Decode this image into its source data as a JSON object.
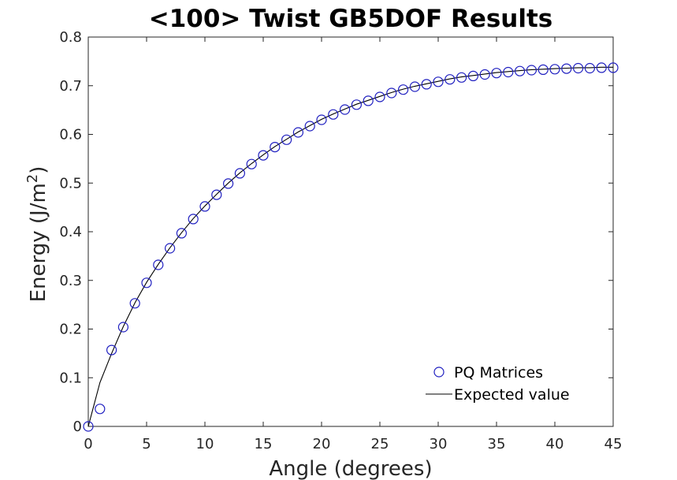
{
  "chart_data": {
    "type": "scatter",
    "title": "<100> Twist GB5DOF Results",
    "xlabel": "Angle (degrees)",
    "ylabel": "Energy (J/m",
    "ylabel_sup": "2",
    "ylabel_close": ")",
    "xlim": [
      0,
      45
    ],
    "ylim": [
      0,
      0.8
    ],
    "xticks": [
      0,
      5,
      10,
      15,
      20,
      25,
      30,
      35,
      40,
      45
    ],
    "yticks": [
      0,
      0.1,
      0.2,
      0.3,
      0.4,
      0.5,
      0.6,
      0.7,
      0.8
    ],
    "ytick_labels": [
      "0",
      "0.1",
      "0.2",
      "0.3",
      "0.4",
      "0.5",
      "0.6",
      "0.7",
      "0.8"
    ],
    "grid": false,
    "legend_position": "bottom-right",
    "series": [
      {
        "name": "PQ Matrices",
        "style": "markers",
        "marker": "circle",
        "color": "#1f1fc0",
        "x": [
          0,
          1,
          2,
          3,
          4,
          5,
          6,
          7,
          8,
          9,
          10,
          11,
          12,
          13,
          14,
          15,
          16,
          17,
          18,
          19,
          20,
          21,
          22,
          23,
          24,
          25,
          26,
          27,
          28,
          29,
          30,
          31,
          32,
          33,
          34,
          35,
          36,
          37,
          38,
          39,
          40,
          41,
          42,
          43,
          44,
          45
        ],
        "y": [
          0,
          0.036,
          0.157,
          0.204,
          0.253,
          0.295,
          0.332,
          0.366,
          0.397,
          0.426,
          0.452,
          0.476,
          0.499,
          0.52,
          0.539,
          0.557,
          0.574,
          0.589,
          0.604,
          0.617,
          0.63,
          0.641,
          0.651,
          0.661,
          0.669,
          0.677,
          0.685,
          0.692,
          0.698,
          0.703,
          0.708,
          0.713,
          0.717,
          0.72,
          0.723,
          0.726,
          0.728,
          0.73,
          0.732,
          0.733,
          0.734,
          0.735,
          0.736,
          0.736,
          0.737,
          0.737
        ]
      },
      {
        "name": "Expected value",
        "style": "line",
        "color": "#000000",
        "x": [
          0,
          0.5,
          1,
          1.5,
          2,
          3,
          4,
          5,
          6,
          7,
          8,
          9,
          10,
          11,
          12,
          13,
          14,
          15,
          16,
          17,
          18,
          19,
          20,
          21,
          22,
          23,
          24,
          25,
          26,
          27,
          28,
          29,
          30,
          31,
          32,
          33,
          34,
          35,
          36,
          37,
          38,
          39,
          40,
          41,
          42,
          43,
          44,
          45
        ],
        "y": [
          0,
          0.045,
          0.09,
          0.12,
          0.15,
          0.205,
          0.254,
          0.296,
          0.333,
          0.367,
          0.398,
          0.427,
          0.453,
          0.477,
          0.5,
          0.521,
          0.54,
          0.558,
          0.575,
          0.59,
          0.605,
          0.618,
          0.631,
          0.642,
          0.652,
          0.662,
          0.67,
          0.678,
          0.686,
          0.693,
          0.699,
          0.704,
          0.709,
          0.714,
          0.718,
          0.721,
          0.724,
          0.727,
          0.729,
          0.731,
          0.733,
          0.734,
          0.735,
          0.736,
          0.737,
          0.737,
          0.738,
          0.738
        ]
      }
    ]
  }
}
